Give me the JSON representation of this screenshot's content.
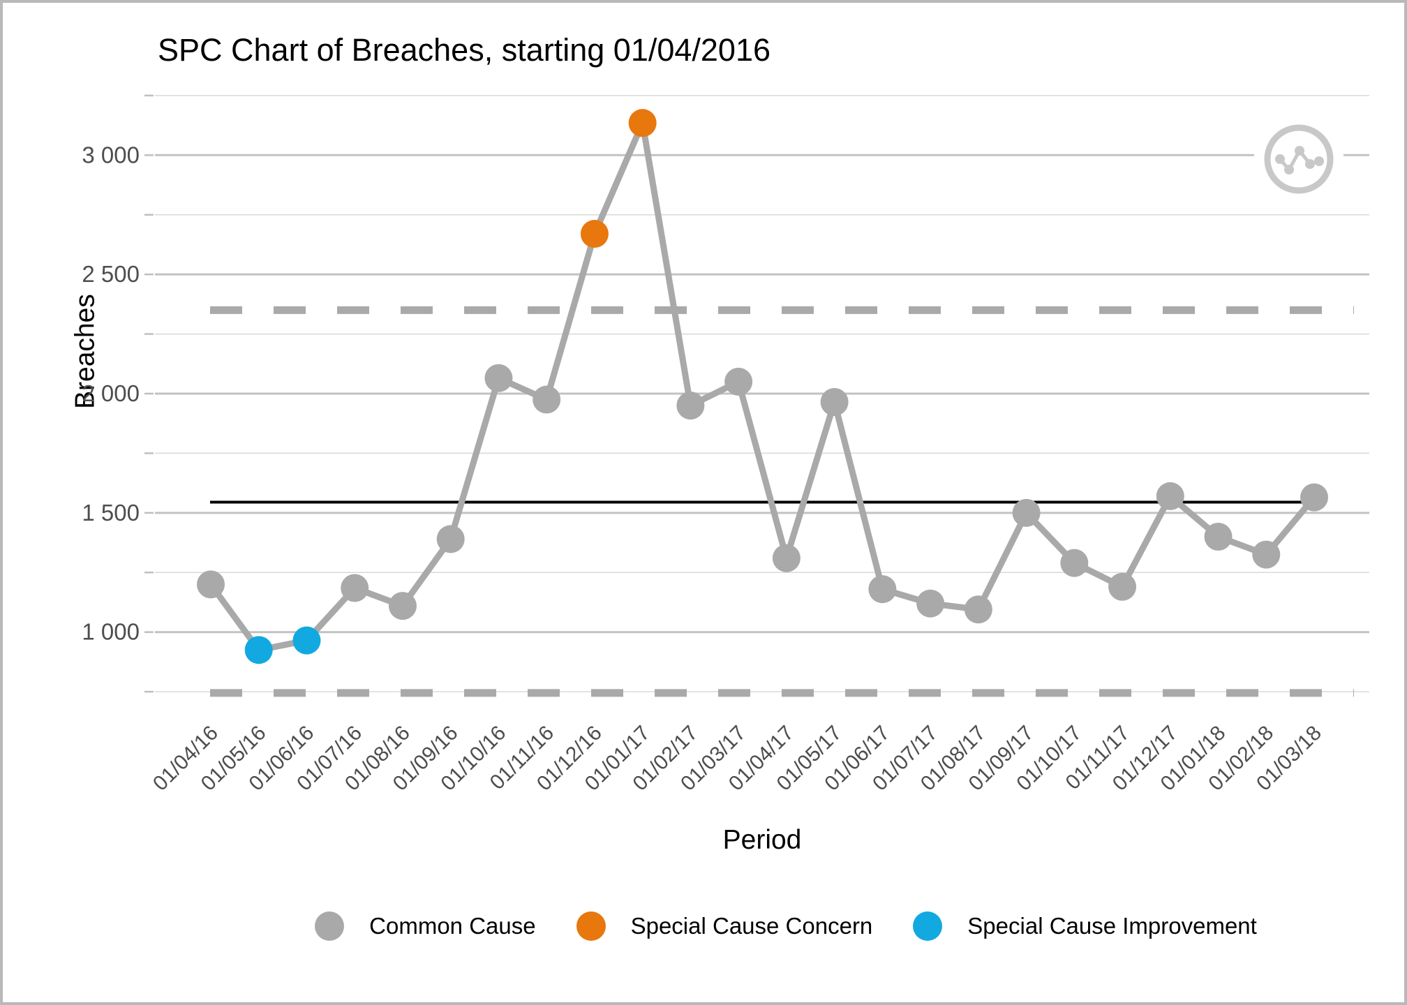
{
  "title": "SPC Chart of Breaches, starting 01/04/2016",
  "y_axis": {
    "label": "Breaches",
    "tick_labels": [
      "1 000",
      "1 500",
      "2 000",
      "2 500",
      "3 000"
    ],
    "tick_values": [
      1000,
      1500,
      2000,
      2500,
      3000
    ]
  },
  "x_axis": {
    "label": "Period"
  },
  "legend": [
    {
      "label": "Common Cause",
      "color": "#a9a9a9"
    },
    {
      "label": "Special Cause Concern",
      "color": "#e8770d"
    },
    {
      "label": "Special Cause Improvement",
      "color": "#12a9e0"
    }
  ],
  "icon": {
    "name": "spc-line-chart-icon",
    "color": "#c8c8c8"
  },
  "colors": {
    "line": "#a9a9a9",
    "common": "#a9a9a9",
    "concern": "#e8770d",
    "improvement": "#12a9e0",
    "center_line": "#000000",
    "limit_line": "#a9a9a9",
    "grid_major": "#c2c2c2",
    "grid_minor": "#d9d9d9",
    "axis_tick": "#bfbfbf",
    "tick_text": "#4d4d4d"
  },
  "chart_data": {
    "type": "line",
    "title": "SPC Chart of Breaches, starting 01/04/2016",
    "xlabel": "Period",
    "ylabel": "Breaches",
    "x": [
      "01/04/16",
      "01/05/16",
      "01/06/16",
      "01/07/16",
      "01/08/16",
      "01/09/16",
      "01/10/16",
      "01/11/16",
      "01/12/16",
      "01/01/17",
      "01/02/17",
      "01/03/17",
      "01/04/17",
      "01/05/17",
      "01/06/17",
      "01/07/17",
      "01/08/17",
      "01/09/17",
      "01/10/17",
      "01/11/17",
      "01/12/17",
      "01/01/18",
      "01/02/18",
      "01/03/18"
    ],
    "series": [
      {
        "name": "Breaches",
        "values": [
          1200,
          925,
          965,
          1185,
          1110,
          1390,
          2065,
          1975,
          2670,
          3135,
          1950,
          2050,
          1310,
          1965,
          1180,
          1120,
          1095,
          1500,
          1290,
          1190,
          1570,
          1400,
          1325,
          1565
        ]
      }
    ],
    "point_categories": [
      "common",
      "improvement",
      "improvement",
      "common",
      "common",
      "common",
      "common",
      "common",
      "concern",
      "concern",
      "common",
      "common",
      "common",
      "common",
      "common",
      "common",
      "common",
      "common",
      "common",
      "common",
      "common",
      "common",
      "common",
      "common"
    ],
    "center_line": 1545,
    "upper_control_limit": 2350,
    "lower_control_limit": 745,
    "ylim": [
      600,
      3300
    ],
    "y_grid_min": 750,
    "y_grid_max": 3250,
    "y_grid_step": 250,
    "grid": "horizontal",
    "legend_position": "bottom"
  }
}
